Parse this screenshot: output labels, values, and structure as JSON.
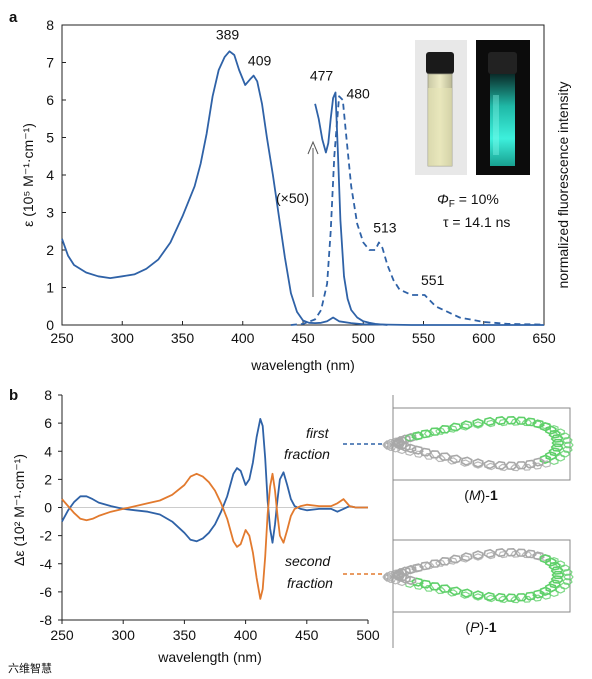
{
  "chart_data": [
    {
      "panel": "a",
      "type": "line",
      "xlabel": "wavelength (nm)",
      "ylabel": "ε (10⁵ M⁻¹·cm⁻¹)",
      "ylabel_right": "normalized fluorescence intensity",
      "xlim": [
        250,
        650
      ],
      "ylim": [
        0,
        8
      ],
      "x_ticks": [
        250,
        300,
        350,
        400,
        450,
        500,
        550,
        600,
        650
      ],
      "y_ticks": [
        0,
        1,
        2,
        3,
        4,
        5,
        6,
        7,
        8
      ],
      "grid": false,
      "series": [
        {
          "style": "solid",
          "color": "#2f62a7",
          "x": [
            250,
            255,
            260,
            270,
            280,
            290,
            300,
            310,
            320,
            330,
            340,
            350,
            360,
            365,
            370,
            375,
            380,
            385,
            389,
            393,
            397,
            402,
            406,
            409,
            412,
            416,
            420,
            425,
            430,
            435,
            440,
            445,
            450,
            455,
            460,
            465,
            470,
            475,
            480,
            490,
            500,
            520,
            540,
            560,
            580,
            600,
            620,
            650
          ],
          "y": [
            2.3,
            1.85,
            1.6,
            1.4,
            1.3,
            1.25,
            1.3,
            1.35,
            1.5,
            1.75,
            2.2,
            2.9,
            3.7,
            4.3,
            5.1,
            6.1,
            6.8,
            7.15,
            7.3,
            7.2,
            6.8,
            6.4,
            6.55,
            6.65,
            6.5,
            5.9,
            5.0,
            4.0,
            2.9,
            1.8,
            0.85,
            0.35,
            0.12,
            0.06,
            0.05,
            0.06,
            0.1,
            0.2,
            0.1,
            0.05,
            0.02,
            0.01,
            0,
            0,
            0,
            0,
            0,
            0
          ]
        },
        {
          "name": "(×50)",
          "style": "solid",
          "color": "#2f62a7",
          "x": [
            460,
            463,
            466,
            469,
            471,
            473,
            475,
            477,
            479,
            481,
            484,
            487,
            490,
            495,
            500,
            505,
            510,
            520
          ],
          "y": [
            5.9,
            5.5,
            4.95,
            4.6,
            4.85,
            5.5,
            6.05,
            6.2,
            4.6,
            2.8,
            1.3,
            0.7,
            0.4,
            0.2,
            0.1,
            0.06,
            0.03,
            0.0
          ]
        },
        {
          "name": "fluorescence",
          "style": "dashed",
          "color": "#2f62a7",
          "x": [
            440,
            450,
            460,
            465,
            470,
            473,
            476,
            480,
            483,
            486,
            490,
            495,
            500,
            505,
            510,
            513,
            516,
            520,
            525,
            530,
            540,
            551,
            560,
            580,
            600,
            620,
            650
          ],
          "y": [
            0,
            0.03,
            0.15,
            0.4,
            1.1,
            2.5,
            4.5,
            6.1,
            6.0,
            5.0,
            3.7,
            2.7,
            2.2,
            2.0,
            2.0,
            2.2,
            2.05,
            1.6,
            1.2,
            0.95,
            0.8,
            0.8,
            0.5,
            0.2,
            0.08,
            0.03,
            0.01
          ]
        }
      ],
      "peak_labels": [
        {
          "x": 389,
          "y": 7.3,
          "text": "389"
        },
        {
          "x": 409,
          "y": 6.65,
          "text": "409"
        },
        {
          "x": 477,
          "y": 6.2,
          "text": "477"
        },
        {
          "x": 480,
          "y": 6.1,
          "text": "480"
        },
        {
          "x": 513,
          "y": 2.2,
          "text": "513"
        },
        {
          "x": 551,
          "y": 0.8,
          "text": "551"
        }
      ],
      "scale_label": "(×50)",
      "quantum_yield": "ΦF = 10%",
      "quantum_yield_symbol": "Φ",
      "quantum_yield_sub": "F",
      "quantum_yield_value": " = 10%",
      "lifetime": "τ = 14.1 ns"
    },
    {
      "panel": "b",
      "type": "line",
      "xlabel": "wavelength (nm)",
      "ylabel": "Δε (10² M⁻¹·cm⁻¹)",
      "xlim": [
        250,
        500
      ],
      "ylim": [
        -8,
        8
      ],
      "x_ticks": [
        250,
        300,
        350,
        400,
        450,
        500
      ],
      "y_ticks": [
        -8,
        -6,
        -4,
        -2,
        0,
        2,
        4,
        6,
        8
      ],
      "grid": false,
      "series": [
        {
          "name": "first fraction",
          "color": "#2f62a7",
          "x": [
            250,
            255,
            260,
            265,
            270,
            275,
            280,
            290,
            300,
            310,
            320,
            330,
            340,
            350,
            355,
            360,
            365,
            370,
            375,
            380,
            385,
            390,
            393,
            396,
            400,
            403,
            406,
            409,
            412,
            414,
            416,
            418,
            420,
            422,
            424,
            426,
            428,
            431,
            434,
            437,
            440,
            445,
            450,
            460,
            470,
            475,
            480,
            485,
            490,
            500
          ],
          "y": [
            -1.0,
            -0.2,
            0.4,
            0.8,
            0.8,
            0.6,
            0.35,
            0.1,
            -0.1,
            -0.2,
            -0.3,
            -0.5,
            -1.0,
            -1.8,
            -2.3,
            -2.4,
            -2.2,
            -1.8,
            -1.2,
            -0.3,
            0.8,
            2.4,
            2.8,
            2.6,
            1.6,
            2.0,
            3.2,
            5.0,
            6.3,
            5.8,
            3.5,
            0.5,
            -1.5,
            -2.5,
            -1.2,
            0.5,
            2.0,
            2.5,
            1.6,
            0.6,
            0.1,
            -0.1,
            -0.2,
            -0.1,
            -0.1,
            -0.3,
            -0.1,
            0.1,
            0.0,
            0.0
          ]
        },
        {
          "name": "second fraction",
          "color": "#e27a2e",
          "x": [
            250,
            255,
            260,
            265,
            270,
            275,
            280,
            290,
            300,
            310,
            320,
            330,
            340,
            350,
            355,
            360,
            365,
            370,
            375,
            380,
            385,
            390,
            393,
            396,
            400,
            403,
            406,
            409,
            412,
            414,
            416,
            418,
            420,
            422,
            424,
            426,
            428,
            431,
            434,
            437,
            440,
            445,
            450,
            460,
            470,
            475,
            480,
            485,
            490,
            500
          ],
          "y": [
            0.6,
            0.1,
            -0.4,
            -0.8,
            -0.9,
            -0.8,
            -0.6,
            -0.3,
            -0.1,
            0.1,
            0.3,
            0.5,
            0.9,
            1.6,
            2.2,
            2.4,
            2.2,
            1.8,
            1.2,
            0.3,
            -0.8,
            -2.4,
            -2.8,
            -2.6,
            -1.6,
            -2.0,
            -3.2,
            -5.0,
            -6.5,
            -5.8,
            -3.5,
            -0.5,
            1.5,
            2.4,
            1.2,
            -0.5,
            -2.0,
            -2.5,
            -1.6,
            -0.6,
            -0.1,
            0.1,
            0.2,
            0.1,
            0.1,
            0.3,
            0.6,
            0.1,
            0.0,
            0.0
          ]
        }
      ],
      "series_labels": {
        "first": [
          "first",
          "fraction"
        ],
        "second": [
          "second",
          "fraction"
        ]
      },
      "structures": [
        {
          "label_prefix": "(",
          "label_italic": "M",
          "label_suffix": ")-",
          "label_bold": "1"
        },
        {
          "label_prefix": "(",
          "label_italic": "P",
          "label_suffix": ")-",
          "label_bold": "1"
        }
      ]
    }
  ],
  "panel_labels": {
    "a": "a",
    "b": "b"
  },
  "colors": {
    "blue": "#2f62a7",
    "orange": "#e27a2e",
    "green": "#5fd06a",
    "gray": "#a8a8a8",
    "cyan_glow": "#27e0c8"
  },
  "watermark": "六维智慧"
}
